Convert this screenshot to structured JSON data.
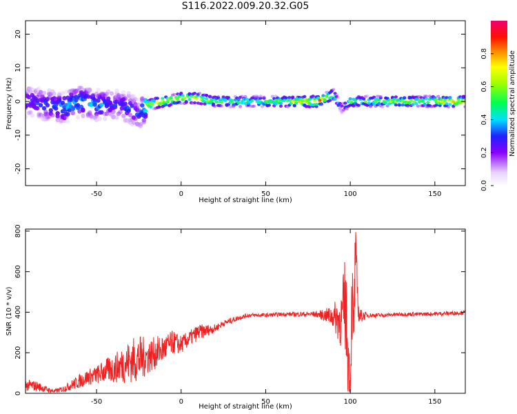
{
  "title": "S116.2022.009.20.32.G05",
  "colors": {
    "snr_line": "#ee2222",
    "axes": "#000000"
  },
  "chart_data": [
    {
      "type": "heatmap",
      "xlabel": "Height of straight line (km)",
      "ylabel": "Frequency (Hz)",
      "xlim": [
        -92,
        168
      ],
      "ylim": [
        -25,
        24
      ],
      "xticks": [
        -50,
        0,
        50,
        100,
        150
      ],
      "yticks": [
        -20,
        -10,
        0,
        10,
        20
      ],
      "colorbar": {
        "label": "Normalized spectral amplitude",
        "range": [
          0,
          1
        ],
        "ticks": [
          0.0,
          0.2,
          0.4,
          0.6,
          0.8
        ]
      },
      "ridge": {
        "x": [
          -90,
          -80,
          -70,
          -60,
          -50,
          -40,
          -30,
          -25,
          -20,
          -10,
          0,
          10,
          20,
          30,
          40,
          50,
          60,
          70,
          80,
          90,
          95,
          100,
          110,
          120,
          130,
          140,
          150,
          160,
          168
        ],
        "frequency": [
          0,
          -1,
          -2,
          0,
          -1,
          -1,
          -2,
          -4,
          -1,
          0,
          1,
          1,
          0,
          0,
          0,
          0,
          0,
          0,
          0,
          2,
          -2,
          0,
          0,
          0,
          0,
          0,
          0,
          0,
          0
        ],
        "amplitude": [
          0.3,
          0.35,
          0.4,
          0.45,
          0.4,
          0.3,
          0.35,
          0.3,
          0.6,
          0.8,
          0.7,
          0.75,
          0.6,
          0.55,
          0.55,
          0.55,
          0.6,
          0.75,
          0.9,
          0.6,
          0.3,
          0.6,
          0.55,
          0.6,
          0.65,
          0.6,
          0.7,
          0.8,
          0.75
        ]
      }
    },
    {
      "type": "line",
      "xlabel": "Height of straight line (km)",
      "ylabel": "SNR (10 * v/v)",
      "xlim": [
        -92,
        168
      ],
      "ylim": [
        0,
        810
      ],
      "xticks": [
        -50,
        0,
        50,
        100,
        150
      ],
      "yticks": [
        0,
        200,
        400,
        600,
        800
      ],
      "series": [
        {
          "x": [
            -92,
            -85,
            -80,
            -75,
            -70,
            -65,
            -60,
            -55,
            -50,
            -45,
            -40,
            -35,
            -30,
            -25,
            -20,
            -15,
            -10,
            -5,
            0,
            5,
            10,
            15,
            20,
            25,
            30,
            35,
            40,
            45,
            50,
            60,
            70,
            80,
            85,
            90,
            95,
            97,
            99,
            100,
            101,
            102,
            103,
            105,
            110,
            120,
            130,
            140,
            150,
            160,
            168
          ],
          "y": [
            40,
            35,
            20,
            10,
            20,
            40,
            60,
            80,
            90,
            110,
            120,
            140,
            160,
            170,
            180,
            200,
            220,
            250,
            240,
            270,
            300,
            310,
            320,
            345,
            360,
            375,
            385,
            385,
            385,
            390,
            390,
            390,
            385,
            380,
            360,
            450,
            150,
            20,
            500,
            250,
            700,
            380,
            385,
            385,
            390,
            390,
            392,
            395,
            398
          ],
          "amplitude": [
            30,
            25,
            15,
            10,
            15,
            25,
            35,
            40,
            45,
            60,
            70,
            90,
            110,
            120,
            90,
            80,
            70,
            60,
            45,
            40,
            40,
            30,
            20,
            15,
            15,
            12,
            10,
            10,
            10,
            10,
            12,
            15,
            30,
            60,
            150,
            250,
            200,
            80,
            250,
            200,
            150,
            40,
            12,
            10,
            10,
            10,
            10,
            10,
            10
          ]
        }
      ]
    }
  ]
}
